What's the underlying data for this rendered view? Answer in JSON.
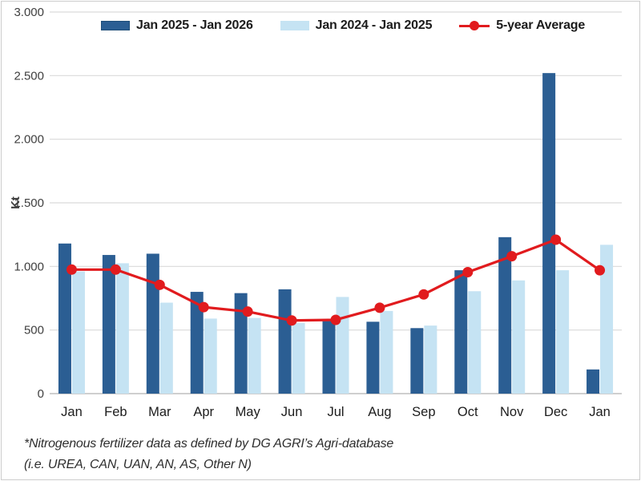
{
  "legend": [
    {
      "label": "Jan 2025 - Jan 2026",
      "type": "bar",
      "color": "#2B5E93"
    },
    {
      "label": "Jan 2024 - Jan 2025",
      "type": "bar",
      "color": "#C5E3F3"
    },
    {
      "label": "5-year Average",
      "type": "line",
      "color": "#E11B1E"
    }
  ],
  "footnote": {
    "line1": "*Nitrogenous fertilizer data as defined by DG AGRI’s Agri-database",
    "line2": "(i.e. UREA, CAN, UAN, AN, AS, Other N)"
  },
  "chart_data": {
    "type": "bar",
    "title": "",
    "xlabel": "",
    "ylabel": "Kt",
    "ylim": [
      0,
      3000
    ],
    "ytick_step": 500,
    "ytick_labels": [
      "0",
      "500",
      "1.000",
      "1.500",
      "2.000",
      "2.500",
      "3.000"
    ],
    "grid": true,
    "legend_position": "top",
    "categories": [
      "Jan",
      "Feb",
      "Mar",
      "Apr",
      "May",
      "Jun",
      "Jul",
      "Aug",
      "Sep",
      "Oct",
      "Nov",
      "Dec",
      "Jan"
    ],
    "series": [
      {
        "name": "Jan 2025 - Jan 2026",
        "type": "bar",
        "color": "#2B5E93",
        "values": [
          1180,
          1090,
          1100,
          800,
          790,
          820,
          570,
          565,
          515,
          970,
          1230,
          2520,
          190
        ]
      },
      {
        "name": "Jan 2024 - Jan 2025",
        "type": "bar",
        "color": "#C5E3F3",
        "values": [
          960,
          1025,
          715,
          590,
          595,
          555,
          760,
          650,
          535,
          805,
          890,
          970,
          1170
        ]
      },
      {
        "name": "5-year Average",
        "type": "line",
        "color": "#E11B1E",
        "values": [
          975,
          975,
          855,
          680,
          645,
          575,
          580,
          675,
          780,
          955,
          1080,
          1210,
          970
        ]
      }
    ],
    "colors": {
      "gridline": "#D9D9D9",
      "axis_line": "#BFBFBF",
      "tick_text": "#3F3F3F",
      "month_text": "#1C1C1C"
    }
  }
}
